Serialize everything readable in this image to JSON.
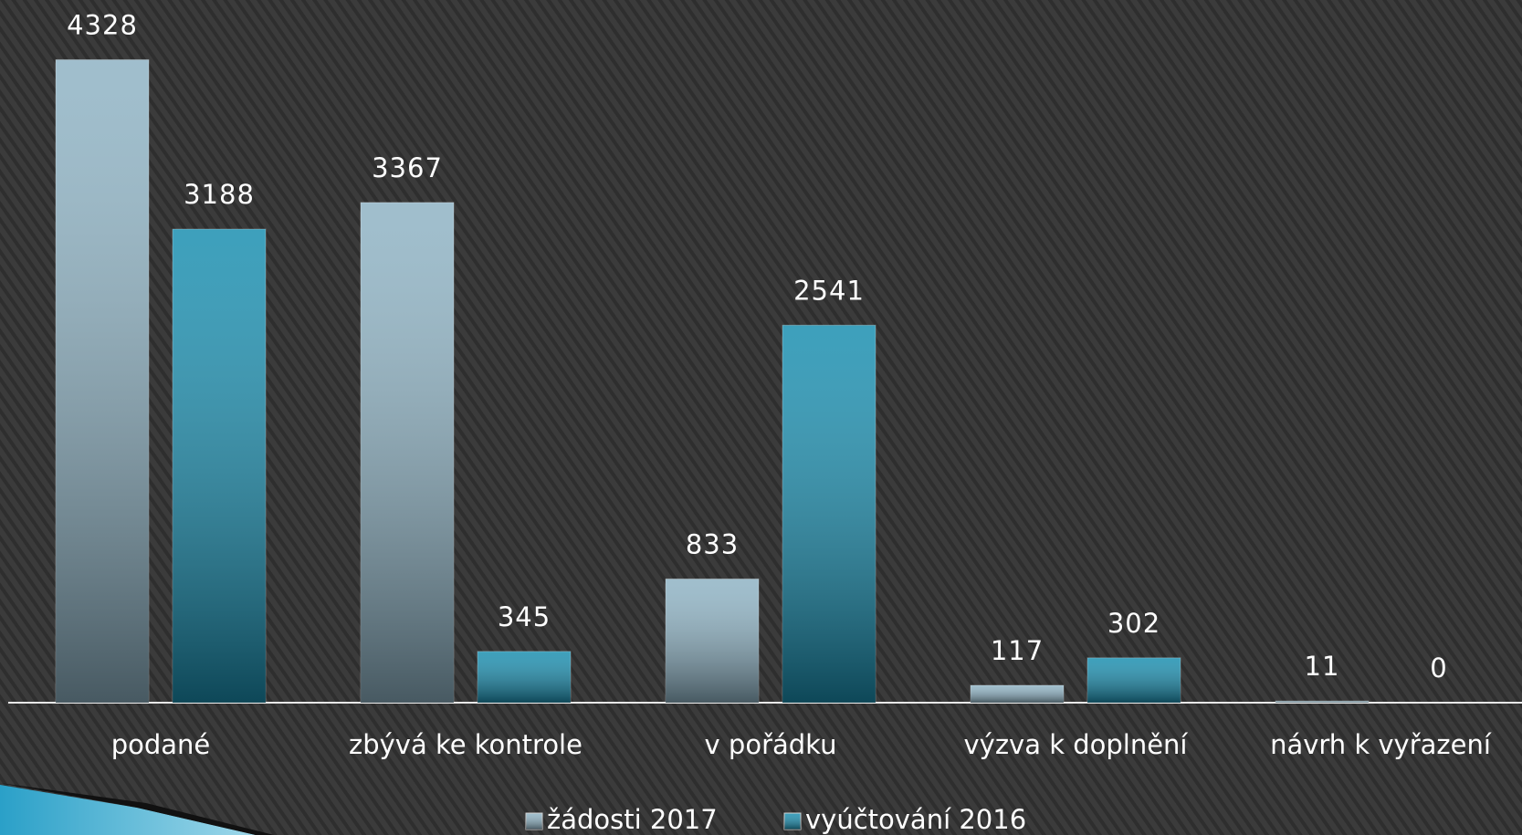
{
  "chart_data": {
    "type": "bar",
    "categories": [
      "podané",
      "zbývá ke kontrole",
      "v pořádku",
      "výzva k doplnění",
      "návrh k vyřazení"
    ],
    "series": [
      {
        "name": "žádosti 2017",
        "color": "#8fb3c4",
        "values": [
          4328,
          3367,
          833,
          117,
          11
        ]
      },
      {
        "name": "vyúčtování 2016",
        "color": "#1b8fb0",
        "values": [
          3188,
          345,
          2541,
          302,
          0
        ]
      }
    ],
    "ylim": [
      0,
      4730
    ]
  }
}
